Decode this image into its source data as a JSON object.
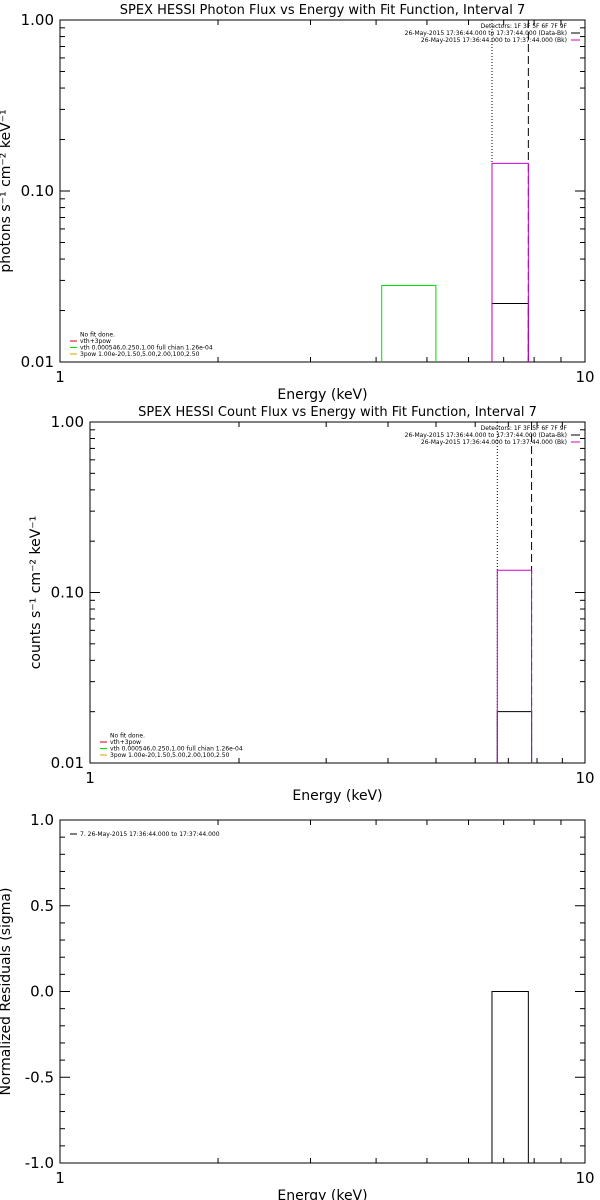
{
  "chart_data": [
    {
      "type": "bar",
      "id": "photon",
      "title": "SPEX HESSI Photon Flux vs Energy with Fit Function, Interval 7",
      "xlabel": "Energy (keV)",
      "ylabel": "photons s⁻¹ cm⁻² keV⁻¹",
      "xscale": "log",
      "yscale": "log",
      "xlim": [
        1,
        10
      ],
      "ylim": [
        0.01,
        1.0
      ],
      "x_tick_labels": [
        {
          "v": 1,
          "t": "1"
        },
        {
          "v": 10,
          "t": "10"
        }
      ],
      "y_tick_labels": [
        {
          "v": 0.01,
          "t": "0.01"
        },
        {
          "v": 0.1,
          "t": "0.10"
        },
        {
          "v": 1.0,
          "t": "1.00"
        }
      ],
      "vlines": [
        {
          "x": 6.65,
          "style": "dotted",
          "color": "#000000"
        },
        {
          "x": 7.8,
          "style": "dashed",
          "color": "#000000"
        }
      ],
      "series": [
        {
          "name": "Detectors: 1F 3F 5F 6F 7F 9F",
          "color": "#000000",
          "bins": []
        },
        {
          "name": "26-May-2015 17:36:44.000 to 17:37:44.000 (Data-Bk)",
          "color": "#000000",
          "bins": [
            {
              "x0": 6.65,
              "x1": 7.8,
              "y": 0.022
            }
          ]
        },
        {
          "name": "26-May-2015 17:36:44.000 to 17:37:44.000 (Bk)",
          "color": "#d000d0",
          "bins": [
            {
              "x0": 6.65,
              "x1": 7.8,
              "y": 0.145
            }
          ]
        },
        {
          "name": "vth 0.000546,0.250,1.00  full chian 1.26e-04",
          "color": "#00dd00",
          "bins": [
            {
              "x0": 4.1,
              "x1": 5.2,
              "y": 0.028
            }
          ]
        }
      ],
      "legend_top": {
        "lines": [
          {
            "text": "Detectors: 1F 3F 5F 6F 7F 9F",
            "color": ""
          },
          {
            "text": "26-May-2015 17:36:44.000 to 17:37:44.000 (Data-Bk)",
            "color": "#000000"
          },
          {
            "text": "26-May-2015 17:36:44.000 to 17:37:44.000 (Bk)",
            "color": "#d000d0"
          }
        ]
      },
      "legend_bottom": {
        "lines": [
          {
            "text": "No fit done.",
            "color": ""
          },
          {
            "text": "vth+3pow",
            "color": "#d00000"
          },
          {
            "text": "vth 0.000546,0.250,1.00  full chian 1.26e-04",
            "color": "#00dd00"
          },
          {
            "text": "3pow 1.00e-20,1.50,5.00,2.00,100,2.50",
            "color": "#e0a000"
          }
        ]
      }
    },
    {
      "type": "bar",
      "id": "count",
      "title": "SPEX HESSI Count Flux vs Energy with Fit Function, Interval 7",
      "xlabel": "Energy (keV)",
      "ylabel": "counts s⁻¹ cm⁻² keV⁻¹",
      "xscale": "log",
      "yscale": "log",
      "xlim": [
        1,
        10
      ],
      "ylim": [
        0.01,
        1.0
      ],
      "x_tick_labels": [
        {
          "v": 1,
          "t": "1"
        },
        {
          "v": 10,
          "t": "10"
        }
      ],
      "y_tick_labels": [
        {
          "v": 0.01,
          "t": "0.01"
        },
        {
          "v": 0.1,
          "t": "0.10"
        },
        {
          "v": 1.0,
          "t": "1.00"
        }
      ],
      "vlines": [
        {
          "x": 6.65,
          "style": "dotted",
          "color": "#000000"
        },
        {
          "x": 7.8,
          "style": "dashed",
          "color": "#000000"
        }
      ],
      "series": [
        {
          "name": "26-May-2015 17:36:44.000 to 17:37:44.000 (Data-Bk)",
          "color": "#000000",
          "bins": [
            {
              "x0": 6.65,
              "x1": 7.8,
              "y": 0.02
            }
          ]
        },
        {
          "name": "26-May-2015 17:36:44.000 to 17:37:44.000 (Bk)",
          "color": "#d000d0",
          "bins": [
            {
              "x0": 6.65,
              "x1": 7.8,
              "y": 0.135
            }
          ]
        }
      ],
      "legend_top": {
        "lines": [
          {
            "text": "Detectors: 1F 3F 5F 6F 7F 9F",
            "color": ""
          },
          {
            "text": "26-May-2015 17:36:44.000 to 17:37:44.000 (Data-Bk)",
            "color": "#000000"
          },
          {
            "text": "26-May-2015 17:36:44.000 to 17:37:44.000 (Bk)",
            "color": "#d000d0"
          }
        ]
      },
      "legend_bottom": {
        "lines": [
          {
            "text": "No fit done.",
            "color": ""
          },
          {
            "text": "vth+3pow",
            "color": "#d00000"
          },
          {
            "text": "vth 0.000546,0.250,1.00  full chian 1.26e-04",
            "color": "#00dd00"
          },
          {
            "text": "3pow 1.00e-20,1.50,5.00,2.00,100,2.50",
            "color": "#e0a000"
          }
        ]
      }
    },
    {
      "type": "bar",
      "id": "resid",
      "title": "",
      "xlabel": "Energy (keV)",
      "ylabel": "Normalized Residuals (sigma)",
      "xscale": "log",
      "yscale": "linear",
      "xlim": [
        1,
        10
      ],
      "ylim": [
        -1.0,
        1.0
      ],
      "x_tick_labels": [
        {
          "v": 1,
          "t": "1"
        },
        {
          "v": 10,
          "t": "10"
        }
      ],
      "y_tick_labels": [
        {
          "v": 1.0,
          "t": "1.0"
        },
        {
          "v": 0.5,
          "t": "0.5"
        },
        {
          "v": 0.0,
          "t": "0.0"
        },
        {
          "v": -0.5,
          "t": "-0.5"
        },
        {
          "v": -1.0,
          "t": "-1.0"
        }
      ],
      "vlines": [],
      "series": [
        {
          "name": "7. 26-May-2015 17:36:44.000 to 17:37:44.000",
          "color": "#000000",
          "bins": [
            {
              "x0": 6.65,
              "x1": 7.8,
              "y": 0.0
            }
          ]
        }
      ],
      "legend_top_left": {
        "lines": [
          {
            "text": "7. 26-May-2015 17:36:44.000 to 17:37:44.000",
            "color": "#000000"
          }
        ]
      }
    }
  ]
}
